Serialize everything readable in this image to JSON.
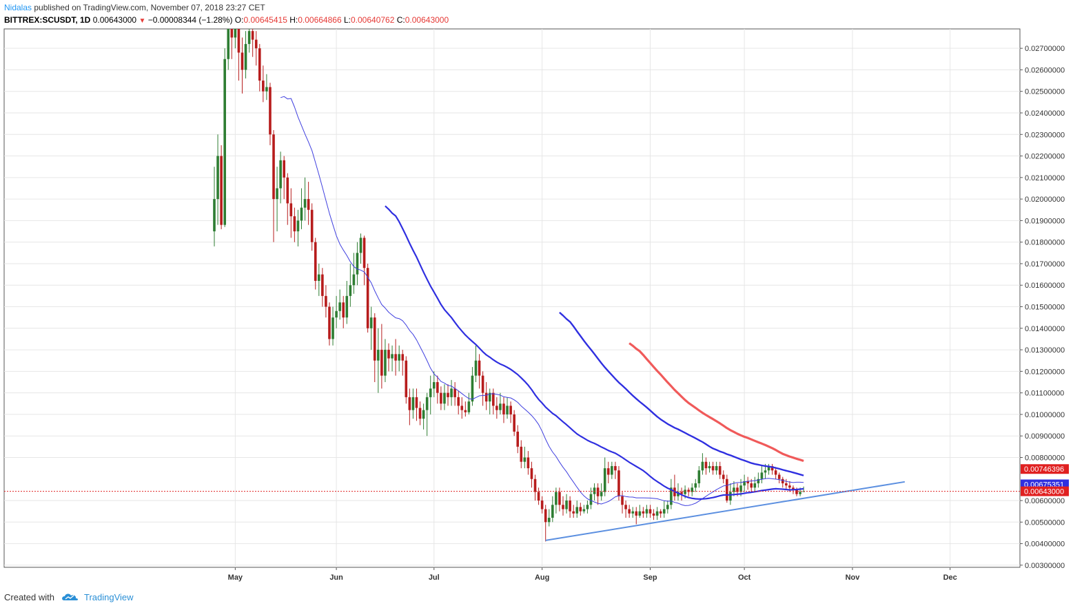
{
  "header": {
    "author": "Nidalas",
    "published_text": "published on TradingView.com, November 07, 2018 23:27 CET",
    "symbol": "BITTREX:SCUSDT, 1D",
    "last": "0.00643000",
    "change": "−0.00008344 (−1.28%)",
    "o_label": "O:",
    "o": "0.00645415",
    "h_label": "H:",
    "h": "0.00664866",
    "l_label": "L:",
    "l": "0.00640762",
    "c_label": "C:",
    "c": "0.00643000"
  },
  "footer": {
    "created_with": "Created with",
    "brand": "TradingView",
    "logo_icon": "tradingview-cloud-icon"
  },
  "colors": {
    "up": "#2e7d32",
    "down": "#b71c1c",
    "ma_thin": "#3f3fdf",
    "ma_mid": "#2f2fe0",
    "ma_slow": "#f05a5a",
    "trendline": "#5b8fe0",
    "last_price": "#e02020"
  },
  "chart_data": {
    "type": "candlestick",
    "x_ticks": [
      "May",
      "Jun",
      "Jul",
      "Aug",
      "Sep",
      "Oct",
      "Nov",
      "Dec"
    ],
    "y_ticks": [
      "0.02700000",
      "0.02600000",
      "0.02500000",
      "0.02400000",
      "0.02300000",
      "0.02200000",
      "0.02100000",
      "0.02000000",
      "0.01900000",
      "0.01800000",
      "0.01700000",
      "0.01600000",
      "0.01500000",
      "0.01400000",
      "0.01300000",
      "0.01200000",
      "0.01100000",
      "0.01000000",
      "0.00900000",
      "0.00800000",
      "0.00600000",
      "0.00500000",
      "0.00400000",
      "0.00300000"
    ],
    "ylim": [
      0.0029,
      0.0279
    ],
    "candles": [
      [
        0.0185,
        0.02,
        0.0215,
        0.0178
      ],
      [
        0.02,
        0.022,
        0.023,
        0.0188
      ],
      [
        0.022,
        0.0188,
        0.0225,
        0.0186
      ],
      [
        0.0188,
        0.0265,
        0.027,
        0.0187
      ],
      [
        0.0265,
        0.0282,
        0.0285,
        0.026
      ],
      [
        0.0282,
        0.0275,
        0.0284,
        0.0265
      ],
      [
        0.0275,
        0.028,
        0.0285,
        0.027
      ],
      [
        0.028,
        0.0268,
        0.0284,
        0.0255
      ],
      [
        0.0268,
        0.026,
        0.0275,
        0.0249
      ],
      [
        0.026,
        0.0272,
        0.0278,
        0.0256
      ],
      [
        0.0272,
        0.0278,
        0.0282,
        0.0268
      ],
      [
        0.0278,
        0.0274,
        0.0281,
        0.0266
      ],
      [
        0.0274,
        0.027,
        0.0278,
        0.0262
      ],
      [
        0.027,
        0.0255,
        0.0272,
        0.025
      ],
      [
        0.0255,
        0.025,
        0.0262,
        0.0245
      ],
      [
        0.025,
        0.0252,
        0.0258,
        0.0246
      ],
      [
        0.0252,
        0.023,
        0.0254,
        0.0225
      ],
      [
        0.023,
        0.02,
        0.0232,
        0.018
      ],
      [
        0.02,
        0.0205,
        0.0215,
        0.0185
      ],
      [
        0.0205,
        0.0218,
        0.0222,
        0.0198
      ],
      [
        0.0218,
        0.021,
        0.022,
        0.02
      ],
      [
        0.021,
        0.0198,
        0.0212,
        0.0188
      ],
      [
        0.0198,
        0.0192,
        0.0205,
        0.0182
      ],
      [
        0.0192,
        0.0185,
        0.0196,
        0.018
      ],
      [
        0.0185,
        0.019,
        0.0195,
        0.0178
      ],
      [
        0.019,
        0.0196,
        0.0205,
        0.0186
      ],
      [
        0.0196,
        0.02,
        0.021,
        0.019
      ],
      [
        0.02,
        0.0195,
        0.0208,
        0.0188
      ],
      [
        0.0195,
        0.018,
        0.0198,
        0.0176
      ],
      [
        0.018,
        0.0162,
        0.0182,
        0.0158
      ],
      [
        0.0162,
        0.0165,
        0.017,
        0.0155
      ],
      [
        0.0165,
        0.0155,
        0.0168,
        0.015
      ],
      [
        0.0155,
        0.015,
        0.016,
        0.0145
      ],
      [
        0.015,
        0.0135,
        0.0152,
        0.0132
      ],
      [
        0.0135,
        0.0145,
        0.015,
        0.0132
      ],
      [
        0.0145,
        0.0148,
        0.0155,
        0.014
      ],
      [
        0.0148,
        0.0152,
        0.0158,
        0.0144
      ],
      [
        0.0152,
        0.0145,
        0.0155,
        0.014
      ],
      [
        0.0145,
        0.0155,
        0.0162,
        0.0142
      ],
      [
        0.0155,
        0.016,
        0.017,
        0.015
      ],
      [
        0.016,
        0.0165,
        0.0175,
        0.0156
      ],
      [
        0.0165,
        0.0175,
        0.018,
        0.016
      ],
      [
        0.0175,
        0.0182,
        0.0184,
        0.017
      ],
      [
        0.0182,
        0.0168,
        0.0183,
        0.016
      ],
      [
        0.0168,
        0.014,
        0.017,
        0.0138
      ],
      [
        0.014,
        0.0145,
        0.015,
        0.013
      ],
      [
        0.0145,
        0.0125,
        0.0147,
        0.0115
      ],
      [
        0.0125,
        0.013,
        0.014,
        0.011
      ],
      [
        0.013,
        0.0118,
        0.0142,
        0.0112
      ],
      [
        0.0118,
        0.013,
        0.0135,
        0.0115
      ],
      [
        0.013,
        0.0126,
        0.0133,
        0.012
      ],
      [
        0.0126,
        0.0128,
        0.0132,
        0.012
      ],
      [
        0.0128,
        0.0125,
        0.0135,
        0.0118
      ],
      [
        0.0125,
        0.0128,
        0.0132,
        0.012
      ],
      [
        0.0128,
        0.0125,
        0.013,
        0.0118
      ],
      [
        0.0125,
        0.0108,
        0.0127,
        0.0105
      ],
      [
        0.0108,
        0.0102,
        0.0112,
        0.0095
      ],
      [
        0.0102,
        0.0108,
        0.0112,
        0.0098
      ],
      [
        0.0108,
        0.0103,
        0.0112,
        0.0097
      ],
      [
        0.0103,
        0.0098,
        0.0106,
        0.0095
      ],
      [
        0.0098,
        0.0102,
        0.0105,
        0.0093
      ],
      [
        0.0102,
        0.0108,
        0.011,
        0.009
      ],
      [
        0.0108,
        0.0112,
        0.0118,
        0.01
      ],
      [
        0.0112,
        0.0115,
        0.012,
        0.0108
      ],
      [
        0.0115,
        0.011,
        0.0118,
        0.0105
      ],
      [
        0.011,
        0.0105,
        0.0113,
        0.0102
      ],
      [
        0.0105,
        0.011,
        0.0114,
        0.0102
      ],
      [
        0.011,
        0.0108,
        0.0114,
        0.0104
      ],
      [
        0.0108,
        0.0112,
        0.0116,
        0.0104
      ],
      [
        0.0112,
        0.0108,
        0.0115,
        0.0104
      ],
      [
        0.0108,
        0.0104,
        0.0111,
        0.01
      ],
      [
        0.0104,
        0.0102,
        0.0108,
        0.0098
      ],
      [
        0.0102,
        0.0101,
        0.0106,
        0.0099
      ],
      [
        0.0101,
        0.0106,
        0.011,
        0.01
      ],
      [
        0.0106,
        0.0118,
        0.0122,
        0.0104
      ],
      [
        0.0118,
        0.0125,
        0.0132,
        0.0115
      ],
      [
        0.0125,
        0.0118,
        0.0128,
        0.0112
      ],
      [
        0.0118,
        0.011,
        0.012,
        0.0104
      ],
      [
        0.011,
        0.0106,
        0.0115,
        0.0102
      ],
      [
        0.0106,
        0.011,
        0.0112,
        0.01
      ],
      [
        0.011,
        0.0104,
        0.0112,
        0.01
      ],
      [
        0.0104,
        0.0102,
        0.0108,
        0.0098
      ],
      [
        0.0102,
        0.0105,
        0.011,
        0.01
      ],
      [
        0.0105,
        0.01,
        0.0108,
        0.0096
      ],
      [
        0.01,
        0.0104,
        0.0108,
        0.0098
      ],
      [
        0.0104,
        0.01,
        0.0106,
        0.0096
      ],
      [
        0.01,
        0.0092,
        0.0102,
        0.009
      ],
      [
        0.0092,
        0.0085,
        0.0095,
        0.0082
      ],
      [
        0.0085,
        0.0078,
        0.0088,
        0.0075
      ],
      [
        0.0078,
        0.008,
        0.0085,
        0.0075
      ],
      [
        0.008,
        0.0075,
        0.0083,
        0.0072
      ],
      [
        0.0075,
        0.007,
        0.0078,
        0.0066
      ],
      [
        0.007,
        0.0064,
        0.0072,
        0.006
      ],
      [
        0.0064,
        0.006,
        0.0066,
        0.0058
      ],
      [
        0.006,
        0.0056,
        0.0062,
        0.0054
      ],
      [
        0.0056,
        0.005,
        0.0058,
        0.0041
      ],
      [
        0.005,
        0.0052,
        0.0056,
        0.0048
      ],
      [
        0.0052,
        0.0058,
        0.0062,
        0.005
      ],
      [
        0.0058,
        0.0064,
        0.0066,
        0.0054
      ],
      [
        0.0064,
        0.0058,
        0.0066,
        0.0055
      ],
      [
        0.0058,
        0.0056,
        0.0062,
        0.0053
      ],
      [
        0.0056,
        0.006,
        0.0063,
        0.0054
      ],
      [
        0.006,
        0.0055,
        0.0062,
        0.0052
      ],
      [
        0.0055,
        0.0054,
        0.0058,
        0.0052
      ],
      [
        0.0054,
        0.0057,
        0.006,
        0.0052
      ],
      [
        0.0057,
        0.0055,
        0.0059,
        0.0053
      ],
      [
        0.0055,
        0.0056,
        0.0058,
        0.0054
      ],
      [
        0.0056,
        0.0058,
        0.006,
        0.0054
      ],
      [
        0.0058,
        0.0063,
        0.0066,
        0.0056
      ],
      [
        0.0063,
        0.0066,
        0.0068,
        0.006
      ],
      [
        0.0066,
        0.0062,
        0.0068,
        0.0058
      ],
      [
        0.0062,
        0.0064,
        0.0068,
        0.006
      ],
      [
        0.0064,
        0.0075,
        0.008,
        0.0062
      ],
      [
        0.0075,
        0.0072,
        0.0078,
        0.0068
      ],
      [
        0.0072,
        0.0076,
        0.0078,
        0.007
      ],
      [
        0.0076,
        0.0074,
        0.0078,
        0.007
      ],
      [
        0.0074,
        0.0062,
        0.0076,
        0.006
      ],
      [
        0.0062,
        0.0058,
        0.0064,
        0.0054
      ],
      [
        0.0058,
        0.0056,
        0.006,
        0.0052
      ],
      [
        0.0056,
        0.0054,
        0.0058,
        0.0052
      ],
      [
        0.0054,
        0.0055,
        0.0057,
        0.0052
      ],
      [
        0.0055,
        0.0053,
        0.0057,
        0.0049
      ],
      [
        0.0053,
        0.0055,
        0.0058,
        0.0052
      ],
      [
        0.0055,
        0.0054,
        0.0057,
        0.0052
      ],
      [
        0.0054,
        0.0056,
        0.0058,
        0.0052
      ],
      [
        0.0056,
        0.0054,
        0.0058,
        0.0052
      ],
      [
        0.0054,
        0.0053,
        0.0056,
        0.0051
      ],
      [
        0.0053,
        0.0055,
        0.0057,
        0.0051
      ],
      [
        0.0055,
        0.0054,
        0.0056,
        0.0052
      ],
      [
        0.0054,
        0.0056,
        0.006,
        0.0052
      ],
      [
        0.0056,
        0.0058,
        0.006,
        0.0054
      ],
      [
        0.0058,
        0.0066,
        0.007,
        0.0056
      ],
      [
        0.0066,
        0.0062,
        0.0072,
        0.006
      ],
      [
        0.0062,
        0.0064,
        0.0068,
        0.006
      ],
      [
        0.0064,
        0.0063,
        0.0066,
        0.006
      ],
      [
        0.0063,
        0.0065,
        0.0067,
        0.0061
      ],
      [
        0.0065,
        0.0064,
        0.0066,
        0.0062
      ],
      [
        0.0064,
        0.0066,
        0.0068,
        0.0062
      ],
      [
        0.0066,
        0.0068,
        0.007,
        0.0064
      ],
      [
        0.0068,
        0.0074,
        0.0076,
        0.0066
      ],
      [
        0.0074,
        0.0078,
        0.0082,
        0.0072
      ],
      [
        0.0078,
        0.0075,
        0.008,
        0.0072
      ],
      [
        0.0075,
        0.0076,
        0.0078,
        0.0073
      ],
      [
        0.0076,
        0.0074,
        0.0078,
        0.0072
      ],
      [
        0.0074,
        0.0076,
        0.0078,
        0.0072
      ],
      [
        0.0076,
        0.0072,
        0.0078,
        0.007
      ],
      [
        0.0072,
        0.007,
        0.0074,
        0.0068
      ],
      [
        0.007,
        0.006,
        0.0072,
        0.0059
      ],
      [
        0.006,
        0.0064,
        0.0068,
        0.0058
      ],
      [
        0.0064,
        0.0066,
        0.0069,
        0.0062
      ],
      [
        0.0066,
        0.0064,
        0.0068,
        0.0062
      ],
      [
        0.0064,
        0.0067,
        0.007,
        0.0062
      ],
      [
        0.0067,
        0.0069,
        0.0072,
        0.0064
      ],
      [
        0.0069,
        0.0068,
        0.0071,
        0.0065
      ],
      [
        0.0068,
        0.0066,
        0.007,
        0.0064
      ],
      [
        0.0066,
        0.0068,
        0.0071,
        0.0064
      ],
      [
        0.0068,
        0.007,
        0.0073,
        0.0066
      ],
      [
        0.007,
        0.0073,
        0.0076,
        0.0068
      ],
      [
        0.0073,
        0.0074,
        0.0077,
        0.007
      ],
      [
        0.0074,
        0.0076,
        0.0077,
        0.0072
      ],
      [
        0.0076,
        0.0074,
        0.0077,
        0.0072
      ],
      [
        0.0074,
        0.0072,
        0.0075,
        0.007
      ],
      [
        0.0072,
        0.007,
        0.0073,
        0.0068
      ],
      [
        0.007,
        0.0068,
        0.0071,
        0.0066
      ],
      [
        0.0068,
        0.0067,
        0.007,
        0.0065
      ],
      [
        0.0067,
        0.0066,
        0.0069,
        0.0064
      ],
      [
        0.0066,
        0.0065,
        0.0067,
        0.0063
      ],
      [
        0.0065,
        0.0063,
        0.0066,
        0.0062
      ],
      [
        0.0063,
        0.0064,
        0.0066,
        0.0062
      ],
      [
        0.0064,
        0.00643,
        0.00665,
        0.00641
      ]
    ],
    "trendline": [
      [
        0.00415,
        0.00687
      ]
    ],
    "last_price": 0.00643,
    "price_labels": [
      {
        "text": "0.00746396",
        "value": 0.00746396,
        "color": "#e02020"
      },
      {
        "text": "0.00675351",
        "value": 0.00675351,
        "color": "#2f2fe0"
      },
      {
        "text": "0.00643000",
        "value": 0.00643,
        "color": "#e02020"
      }
    ],
    "grid": true
  }
}
